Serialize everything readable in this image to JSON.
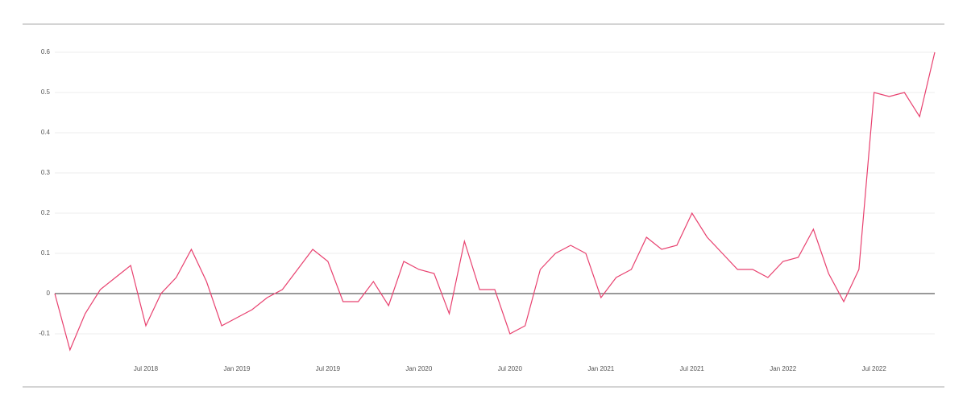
{
  "chart_data": {
    "type": "line",
    "x": [
      "2018-01",
      "2018-02",
      "2018-03",
      "2018-04",
      "2018-05",
      "2018-06",
      "2018-07",
      "2018-08",
      "2018-09",
      "2018-10",
      "2018-11",
      "2018-12",
      "2019-01",
      "2019-02",
      "2019-03",
      "2019-04",
      "2019-05",
      "2019-06",
      "2019-07",
      "2019-08",
      "2019-09",
      "2019-10",
      "2019-11",
      "2019-12",
      "2020-01",
      "2020-02",
      "2020-03",
      "2020-04",
      "2020-05",
      "2020-06",
      "2020-07",
      "2020-08",
      "2020-09",
      "2020-10",
      "2020-11",
      "2020-12",
      "2021-01",
      "2021-02",
      "2021-03",
      "2021-04",
      "2021-05",
      "2021-06",
      "2021-07",
      "2021-08",
      "2021-09",
      "2021-10",
      "2021-11",
      "2021-12",
      "2022-01",
      "2022-02",
      "2022-03",
      "2022-04",
      "2022-05",
      "2022-06",
      "2022-07",
      "2022-08",
      "2022-09",
      "2022-10",
      "2022-11"
    ],
    "series": [
      {
        "color": "#e8416f",
        "values": [
          0.0,
          -0.14,
          -0.05,
          0.01,
          0.04,
          0.07,
          -0.08,
          0.0,
          0.04,
          0.11,
          0.03,
          -0.08,
          -0.06,
          -0.04,
          -0.01,
          0.01,
          0.06,
          0.11,
          0.08,
          -0.02,
          -0.02,
          0.03,
          -0.03,
          0.08,
          0.06,
          0.05,
          -0.05,
          0.13,
          0.01,
          0.01,
          -0.1,
          -0.08,
          0.06,
          0.1,
          0.12,
          0.1,
          -0.01,
          0.04,
          0.06,
          0.14,
          0.11,
          0.12,
          0.2,
          0.14,
          0.1,
          0.06,
          0.06,
          0.04,
          0.08,
          0.09,
          0.16,
          0.05,
          -0.02,
          0.06,
          0.5,
          0.49,
          0.5,
          0.44,
          0.6
        ]
      }
    ],
    "xlim": [
      "2018-01",
      "2022-11"
    ],
    "xticks": [
      {
        "value": "2018-07",
        "label": "Jul 2018"
      },
      {
        "value": "2019-01",
        "label": "Jan 2019"
      },
      {
        "value": "2019-07",
        "label": "Jul 2019"
      },
      {
        "value": "2020-01",
        "label": "Jan 2020"
      },
      {
        "value": "2020-07",
        "label": "Jul 2020"
      },
      {
        "value": "2021-01",
        "label": "Jan 2021"
      },
      {
        "value": "2021-07",
        "label": "Jul 2021"
      },
      {
        "value": "2022-01",
        "label": "Jan 2022"
      },
      {
        "value": "2022-07",
        "label": "Jul 2022"
      }
    ],
    "ylim": [
      -0.18,
      0.67
    ],
    "yticks": [
      -0.1,
      0,
      0.1,
      0.2,
      0.3,
      0.4,
      0.5,
      0.6
    ],
    "grid": true
  }
}
